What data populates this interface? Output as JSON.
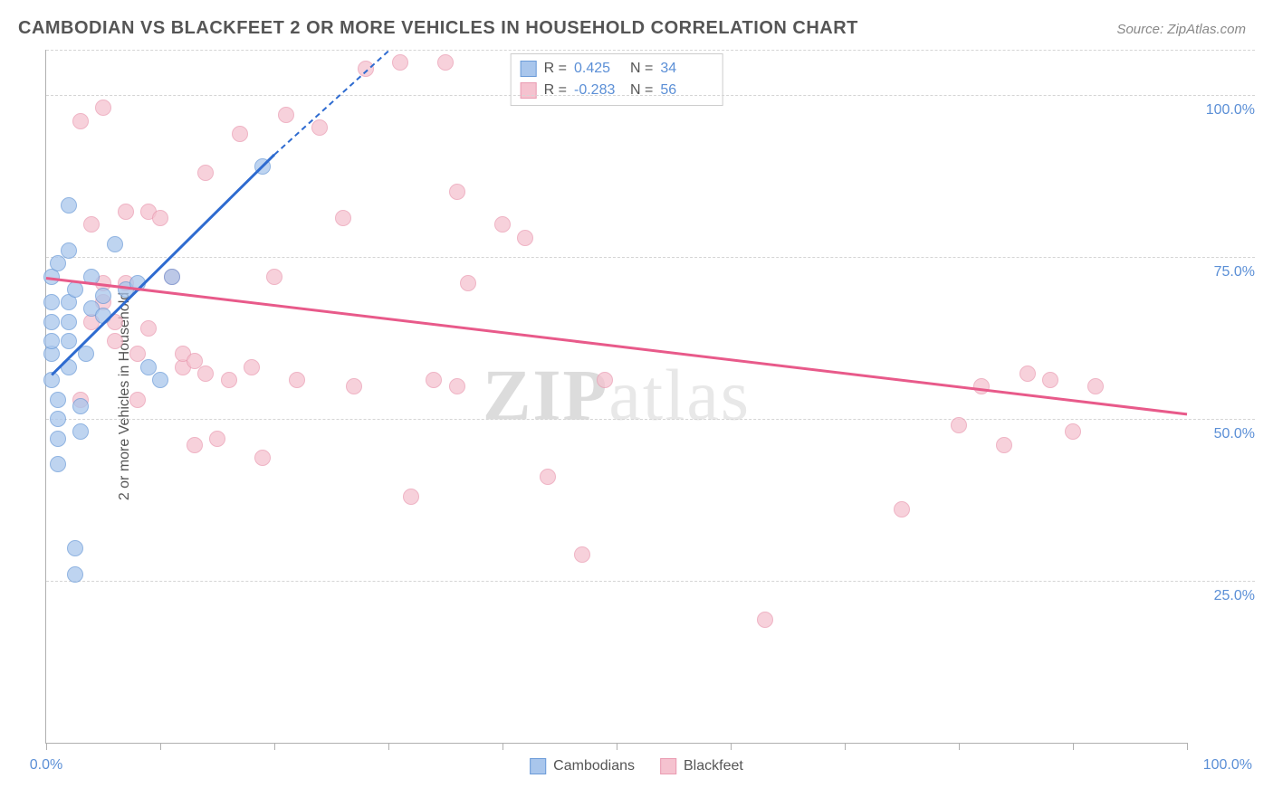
{
  "title": "CAMBODIAN VS BLACKFEET 2 OR MORE VEHICLES IN HOUSEHOLD CORRELATION CHART",
  "source": "Source: ZipAtlas.com",
  "watermark_a": "ZIP",
  "watermark_b": "atlas",
  "y_axis_label": "2 or more Vehicles in Household",
  "colors": {
    "series1_fill": "#a9c6ec",
    "series1_stroke": "#6b9bd8",
    "series2_fill": "#f5c2cf",
    "series2_stroke": "#ea9cb2",
    "trend1": "#2e6bd0",
    "trend2": "#e85a8a",
    "axis_text": "#5b8fd6",
    "grid": "#d5d5d5"
  },
  "xlim": [
    0,
    100
  ],
  "ylim": [
    0,
    107
  ],
  "x_ticks": [
    0,
    10,
    20,
    30,
    40,
    50,
    60,
    70,
    80,
    90,
    100
  ],
  "x_tick_labels": {
    "0": "0.0%",
    "100": "100.0%"
  },
  "y_gridlines": [
    25,
    50,
    75,
    100,
    107
  ],
  "y_tick_labels": {
    "25": "25.0%",
    "50": "50.0%",
    "75": "75.0%",
    "100": "100.0%"
  },
  "point_radius": 9,
  "stats": [
    {
      "r_label": "R =",
      "r": "0.425",
      "n_label": "N =",
      "n": "34",
      "swatch": "series1"
    },
    {
      "r_label": "R =",
      "r": "-0.283",
      "n_label": "N =",
      "n": "56",
      "swatch": "series2"
    }
  ],
  "legend": [
    {
      "label": "Cambodians",
      "swatch": "series1"
    },
    {
      "label": "Blackfeet",
      "swatch": "series2"
    }
  ],
  "trend_lines": [
    {
      "series": 1,
      "x1": 0.5,
      "y1": 57,
      "x2": 20,
      "y2": 91,
      "solid": true
    },
    {
      "series": 1,
      "x1": 20,
      "y1": 91,
      "x2": 30,
      "y2": 107,
      "solid": false
    },
    {
      "series": 2,
      "x1": 0,
      "y1": 72,
      "x2": 100,
      "y2": 51,
      "solid": true
    }
  ],
  "series1_points": [
    [
      0.5,
      56
    ],
    [
      0.5,
      60
    ],
    [
      0.5,
      62
    ],
    [
      0.5,
      65
    ],
    [
      0.5,
      68
    ],
    [
      0.5,
      72
    ],
    [
      1,
      74
    ],
    [
      1,
      53
    ],
    [
      1,
      50
    ],
    [
      1,
      47
    ],
    [
      1,
      43
    ],
    [
      2,
      83
    ],
    [
      2,
      76
    ],
    [
      2,
      68
    ],
    [
      2,
      65
    ],
    [
      2,
      62
    ],
    [
      2,
      58
    ],
    [
      2.5,
      30
    ],
    [
      2.5,
      26
    ],
    [
      3,
      52
    ],
    [
      3,
      48
    ],
    [
      4,
      72
    ],
    [
      4,
      67
    ],
    [
      5,
      69
    ],
    [
      5,
      66
    ],
    [
      6,
      77
    ],
    [
      7,
      70
    ],
    [
      8,
      71
    ],
    [
      9,
      58
    ],
    [
      10,
      56
    ],
    [
      11,
      72
    ],
    [
      19,
      89
    ],
    [
      2.5,
      70
    ],
    [
      3.5,
      60
    ]
  ],
  "series2_points": [
    [
      3,
      96
    ],
    [
      4,
      80
    ],
    [
      5,
      71
    ],
    [
      5,
      68
    ],
    [
      6,
      65
    ],
    [
      6,
      62
    ],
    [
      7,
      82
    ],
    [
      7,
      71
    ],
    [
      8,
      53
    ],
    [
      8,
      60
    ],
    [
      9,
      82
    ],
    [
      9,
      64
    ],
    [
      10,
      81
    ],
    [
      11,
      72
    ],
    [
      12,
      58
    ],
    [
      12,
      60
    ],
    [
      13,
      46
    ],
    [
      14,
      88
    ],
    [
      15,
      47
    ],
    [
      16,
      56
    ],
    [
      17,
      94
    ],
    [
      18,
      58
    ],
    [
      19,
      44
    ],
    [
      20,
      72
    ],
    [
      21,
      97
    ],
    [
      22,
      56
    ],
    [
      24,
      95
    ],
    [
      26,
      81
    ],
    [
      27,
      55
    ],
    [
      28,
      104
    ],
    [
      31,
      105
    ],
    [
      32,
      38
    ],
    [
      34,
      56
    ],
    [
      36,
      85
    ],
    [
      36,
      55
    ],
    [
      37,
      71
    ],
    [
      40,
      80
    ],
    [
      42,
      78
    ],
    [
      44,
      41
    ],
    [
      47,
      29
    ],
    [
      49,
      56
    ],
    [
      63,
      19
    ],
    [
      75,
      36
    ],
    [
      80,
      49
    ],
    [
      82,
      55
    ],
    [
      84,
      46
    ],
    [
      86,
      57
    ],
    [
      88,
      56
    ],
    [
      90,
      48
    ],
    [
      92,
      55
    ],
    [
      3,
      53
    ],
    [
      4,
      65
    ],
    [
      5,
      98
    ],
    [
      35,
      105
    ],
    [
      13,
      59
    ],
    [
      14,
      57
    ]
  ]
}
